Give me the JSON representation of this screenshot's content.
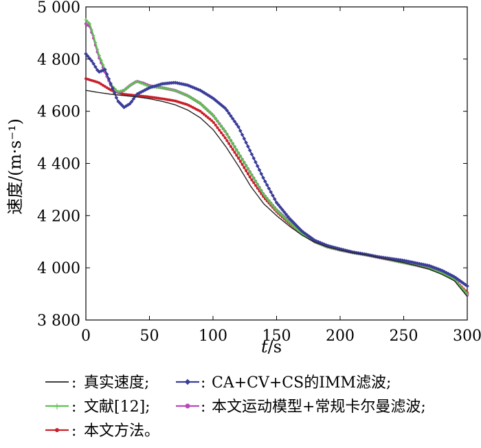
{
  "chart_data": {
    "type": "line",
    "title": "",
    "xlabel": "t / s",
    "ylabel": "速度/(m·s⁻¹)",
    "xlim": [
      0,
      300
    ],
    "ylim": [
      3800,
      5000
    ],
    "x_ticks": [
      "0",
      "50",
      "100",
      "150",
      "200",
      "250",
      "300"
    ],
    "y_ticks": [
      "3 800",
      "4 000",
      "4 200",
      "4 400",
      "4 600",
      "4 800",
      "5 000"
    ],
    "grid": false,
    "legend_position": "bottom",
    "series": [
      {
        "name": "真实速度;",
        "color": "#222222",
        "marker": "none",
        "x": [
          0,
          10,
          20,
          30,
          40,
          50,
          60,
          70,
          80,
          90,
          100,
          110,
          120,
          130,
          140,
          150,
          160,
          170,
          180,
          190,
          200,
          210,
          220,
          230,
          240,
          250,
          260,
          270,
          280,
          290,
          300
        ],
        "y": [
          4680,
          4672,
          4665,
          4660,
          4655,
          4648,
          4638,
          4625,
          4605,
          4575,
          4530,
          4465,
          4390,
          4310,
          4245,
          4200,
          4160,
          4125,
          4098,
          4080,
          4068,
          4058,
          4050,
          4040,
          4030,
          4020,
          4008,
          3995,
          3975,
          3950,
          3890
        ]
      },
      {
        "name": "CA+CV+CS的IMM滤波;",
        "color": "#3a3d99",
        "marker": "diamond",
        "x": [
          0,
          5,
          10,
          15,
          20,
          25,
          30,
          35,
          40,
          50,
          60,
          70,
          80,
          90,
          100,
          110,
          120,
          130,
          140,
          150,
          160,
          170,
          180,
          190,
          200,
          210,
          220,
          230,
          240,
          250,
          260,
          270,
          280,
          290,
          300
        ],
        "y": [
          4820,
          4790,
          4750,
          4760,
          4700,
          4640,
          4615,
          4630,
          4665,
          4690,
          4705,
          4710,
          4700,
          4680,
          4650,
          4610,
          4540,
          4440,
          4340,
          4250,
          4190,
          4140,
          4105,
          4085,
          4072,
          4060,
          4052,
          4042,
          4035,
          4028,
          4018,
          4008,
          3990,
          3965,
          3930
        ]
      },
      {
        "name": "文献[12];",
        "color": "#5cc24e",
        "marker": "plus",
        "x": [
          0,
          3,
          6,
          10,
          15,
          20,
          25,
          30,
          35,
          40,
          45,
          50,
          60,
          70,
          80,
          90,
          100,
          110,
          120,
          130,
          140,
          150,
          160,
          170,
          180,
          190,
          200,
          210,
          220,
          230,
          240,
          250,
          260,
          270,
          280,
          290,
          300
        ],
        "y": [
          4950,
          4935,
          4890,
          4820,
          4760,
          4700,
          4675,
          4680,
          4700,
          4715,
          4705,
          4695,
          4690,
          4680,
          4660,
          4630,
          4585,
          4520,
          4440,
          4360,
          4280,
          4220,
          4175,
          4130,
          4100,
          4080,
          4068,
          4058,
          4050,
          4040,
          4030,
          4020,
          4010,
          3998,
          3980,
          3955,
          3900
        ]
      },
      {
        "name": "本文运动模型+常规卡尔曼滤波;",
        "color": "#b84ab8",
        "marker": "circle",
        "x": [
          0,
          3,
          6,
          10,
          15,
          20,
          25,
          30,
          35,
          40,
          45,
          50,
          60,
          70,
          80,
          90,
          100,
          110,
          120,
          130,
          140,
          150,
          160,
          170,
          180,
          190,
          200,
          210,
          220,
          230,
          240,
          250,
          260,
          270,
          280,
          290,
          300
        ],
        "y": [
          4935,
          4925,
          4880,
          4810,
          4750,
          4695,
          4670,
          4680,
          4700,
          4715,
          4708,
          4698,
          4690,
          4680,
          4660,
          4630,
          4585,
          4520,
          4440,
          4360,
          4280,
          4222,
          4178,
          4132,
          4100,
          4080,
          4068,
          4058,
          4050,
          4040,
          4030,
          4020,
          4010,
          3998,
          3980,
          3955,
          3895
        ]
      },
      {
        "name": "本文方法。",
        "color": "#c8202a",
        "marker": "dot",
        "x": [
          0,
          10,
          20,
          30,
          40,
          50,
          60,
          70,
          80,
          90,
          100,
          110,
          120,
          130,
          140,
          150,
          160,
          170,
          180,
          190,
          200,
          210,
          220,
          230,
          240,
          250,
          260,
          270,
          280,
          290,
          300
        ],
        "y": [
          4725,
          4710,
          4680,
          4665,
          4660,
          4655,
          4648,
          4640,
          4625,
          4600,
          4560,
          4495,
          4420,
          4340,
          4270,
          4215,
          4170,
          4130,
          4100,
          4082,
          4070,
          4060,
          4050,
          4042,
          4032,
          4022,
          4010,
          3998,
          3980,
          3955,
          3905
        ]
      }
    ]
  },
  "legend": [
    {
      "marker_label": "—",
      "colon": ": ",
      "text": "真实速度;"
    },
    {
      "marker_label": "",
      "colon": ": ",
      "text": "CA+CV+CS的IMM滤波;"
    },
    {
      "marker_label": "",
      "colon": ": ",
      "text": "文献[12];"
    },
    {
      "marker_label": "",
      "colon": ": ",
      "text": "本文运动模型+常规卡尔曼滤波;"
    },
    {
      "marker_label": "",
      "colon": ": ",
      "text": "本文方法。"
    }
  ]
}
